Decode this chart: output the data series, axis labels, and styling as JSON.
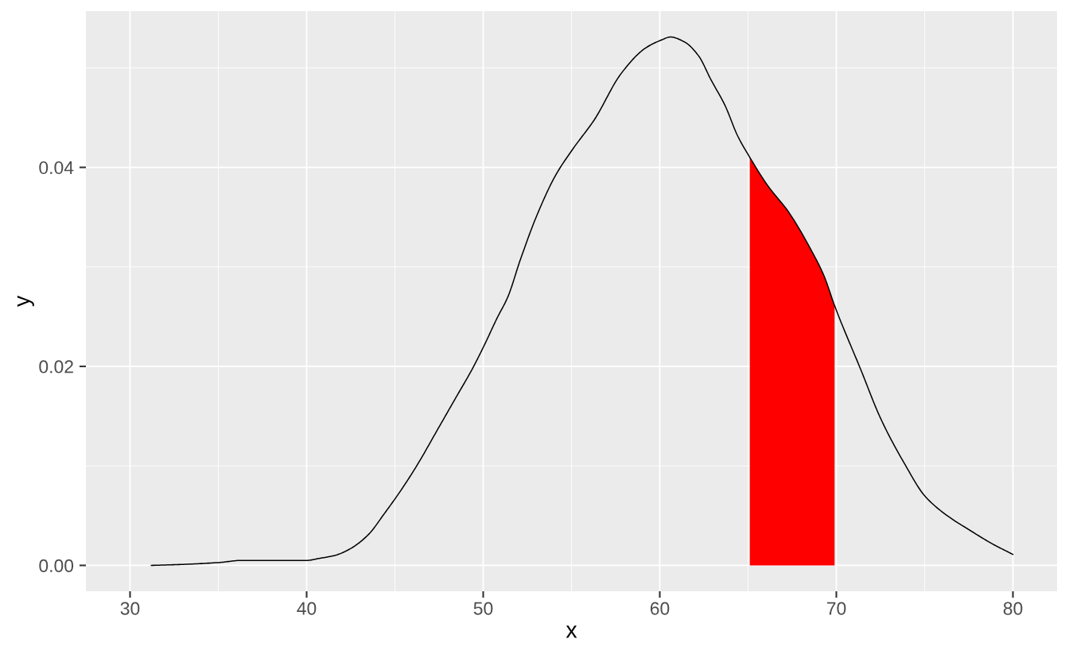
{
  "chart_data": {
    "type": "line",
    "xlabel": "x",
    "ylabel": "y",
    "series": [
      {
        "type": "area",
        "color": "#ff0000",
        "x": [
          65.1,
          66.1,
          67.3,
          68.6,
          69.3,
          69.9
        ],
        "values": [
          0.041,
          0.0382,
          0.0355,
          0.0316,
          0.0291,
          0.0261
        ]
      },
      {
        "color": "#000000",
        "x": [
          31.2,
          33.0,
          35.1,
          36.3,
          37.2,
          38.5,
          40.0,
          40.7,
          41.6,
          42.5,
          43.5,
          44.4,
          45.4,
          46.3,
          47.4,
          48.4,
          49.4,
          50.0,
          50.8,
          51.4,
          52.1,
          53.0,
          54.1,
          55.1,
          56.3,
          57.8,
          59.2,
          60.1,
          60.6,
          61.4,
          62.2,
          62.9,
          63.7,
          64.4,
          65.1,
          66.1,
          67.3,
          68.6,
          69.3,
          69.9,
          71.4,
          72.5,
          73.9,
          75.0,
          76.2,
          77.5,
          78.8,
          80.0
        ],
        "values": [
          0.0,
          0.0001,
          0.0003,
          0.0005,
          0.0005,
          0.0005,
          0.0005,
          0.0007,
          0.001,
          0.0017,
          0.0031,
          0.0052,
          0.0077,
          0.0102,
          0.0136,
          0.0167,
          0.0198,
          0.0219,
          0.0249,
          0.027,
          0.0307,
          0.035,
          0.0392,
          0.0419,
          0.0448,
          0.0494,
          0.052,
          0.0528,
          0.0531,
          0.0526,
          0.0512,
          0.0488,
          0.0462,
          0.0432,
          0.041,
          0.0382,
          0.0355,
          0.0316,
          0.0291,
          0.0261,
          0.0196,
          0.0148,
          0.0101,
          0.007,
          0.0051,
          0.0036,
          0.0022,
          0.0011
        ]
      }
    ],
    "xlim": [
      27.5,
      82.5
    ],
    "xticks": [
      30,
      40,
      50,
      60,
      70,
      80
    ],
    "ylim": [
      -0.0026,
      0.0557
    ],
    "yticks": [
      {
        "value": 0,
        "label": "0.00"
      },
      {
        "value": 0.02,
        "label": "0.02"
      },
      {
        "value": 0.04,
        "label": "0.04"
      }
    ],
    "grid": true
  }
}
